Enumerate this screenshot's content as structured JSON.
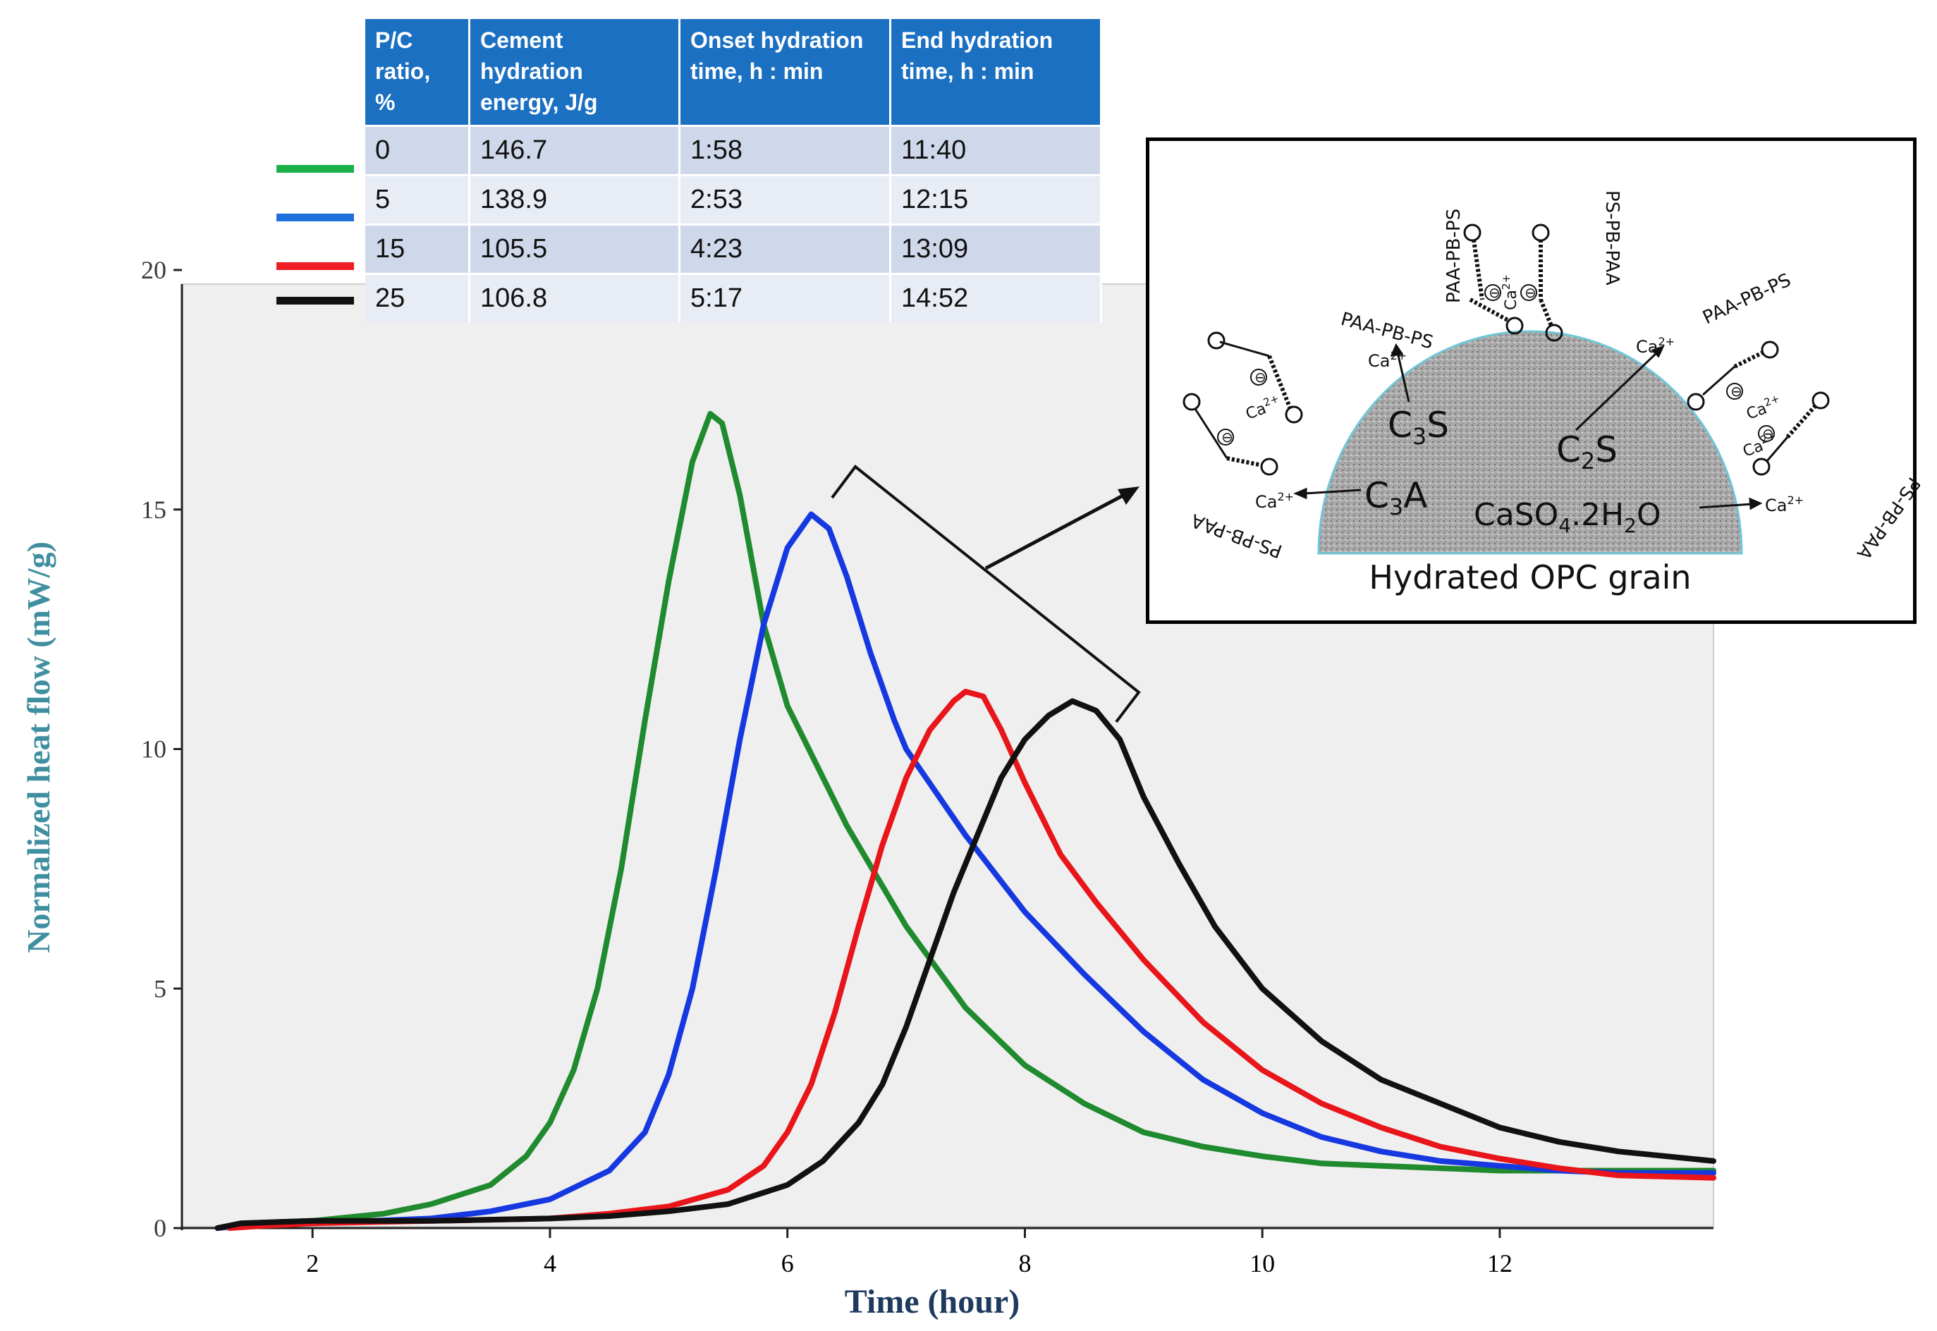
{
  "chart_data": {
    "type": "line",
    "title": "",
    "xlabel": "Time (hour)",
    "ylabel": "Normalized heat flow (mW/g)",
    "xlim": [
      0.9,
      13.8
    ],
    "ylim": [
      0,
      20
    ],
    "xticks": [
      2,
      4,
      6,
      8,
      10,
      12
    ],
    "yticks": [
      0,
      5,
      10,
      15,
      20
    ],
    "series": [
      {
        "name": "0",
        "color": "#1f8a2e",
        "points": [
          [
            1.2,
            0
          ],
          [
            1.4,
            0.1
          ],
          [
            2.0,
            0.15
          ],
          [
            2.6,
            0.3
          ],
          [
            3.0,
            0.5
          ],
          [
            3.5,
            0.9
          ],
          [
            3.8,
            1.5
          ],
          [
            4.0,
            2.2
          ],
          [
            4.2,
            3.3
          ],
          [
            4.4,
            5.0
          ],
          [
            4.6,
            7.5
          ],
          [
            4.8,
            10.6
          ],
          [
            5.0,
            13.5
          ],
          [
            5.2,
            16.0
          ],
          [
            5.35,
            17.0
          ],
          [
            5.45,
            16.8
          ],
          [
            5.6,
            15.3
          ],
          [
            5.8,
            12.6
          ],
          [
            6.0,
            10.9
          ],
          [
            6.2,
            9.9
          ],
          [
            6.5,
            8.4
          ],
          [
            7.0,
            6.3
          ],
          [
            7.5,
            4.6
          ],
          [
            8.0,
            3.4
          ],
          [
            8.5,
            2.6
          ],
          [
            9.0,
            2.0
          ],
          [
            9.5,
            1.7
          ],
          [
            10.0,
            1.5
          ],
          [
            10.5,
            1.35
          ],
          [
            11.0,
            1.3
          ],
          [
            12.0,
            1.2
          ],
          [
            13.0,
            1.2
          ],
          [
            13.8,
            1.2
          ]
        ]
      },
      {
        "name": "5",
        "color": "#1638e0",
        "points": [
          [
            1.2,
            0
          ],
          [
            1.4,
            0.05
          ],
          [
            2.0,
            0.1
          ],
          [
            3.0,
            0.2
          ],
          [
            3.5,
            0.35
          ],
          [
            4.0,
            0.6
          ],
          [
            4.5,
            1.2
          ],
          [
            4.8,
            2.0
          ],
          [
            5.0,
            3.2
          ],
          [
            5.2,
            5.0
          ],
          [
            5.4,
            7.5
          ],
          [
            5.6,
            10.2
          ],
          [
            5.8,
            12.6
          ],
          [
            6.0,
            14.2
          ],
          [
            6.2,
            14.9
          ],
          [
            6.35,
            14.6
          ],
          [
            6.5,
            13.6
          ],
          [
            6.7,
            12.0
          ],
          [
            6.9,
            10.6
          ],
          [
            7.0,
            10.0
          ],
          [
            7.5,
            8.2
          ],
          [
            8.0,
            6.6
          ],
          [
            8.5,
            5.3
          ],
          [
            9.0,
            4.1
          ],
          [
            9.5,
            3.1
          ],
          [
            10.0,
            2.4
          ],
          [
            10.5,
            1.9
          ],
          [
            11.0,
            1.6
          ],
          [
            11.5,
            1.4
          ],
          [
            12.0,
            1.3
          ],
          [
            12.5,
            1.2
          ],
          [
            13.0,
            1.15
          ],
          [
            13.8,
            1.15
          ]
        ]
      },
      {
        "name": "15",
        "color": "#e8151a",
        "points": [
          [
            1.3,
            0
          ],
          [
            1.6,
            0.05
          ],
          [
            2.0,
            0.1
          ],
          [
            3.0,
            0.15
          ],
          [
            4.0,
            0.2
          ],
          [
            4.5,
            0.3
          ],
          [
            5.0,
            0.45
          ],
          [
            5.5,
            0.8
          ],
          [
            5.8,
            1.3
          ],
          [
            6.0,
            2.0
          ],
          [
            6.2,
            3.0
          ],
          [
            6.4,
            4.5
          ],
          [
            6.6,
            6.3
          ],
          [
            6.8,
            8.0
          ],
          [
            7.0,
            9.4
          ],
          [
            7.2,
            10.4
          ],
          [
            7.4,
            11.0
          ],
          [
            7.5,
            11.2
          ],
          [
            7.65,
            11.1
          ],
          [
            7.8,
            10.4
          ],
          [
            8.0,
            9.3
          ],
          [
            8.3,
            7.8
          ],
          [
            8.6,
            6.8
          ],
          [
            9.0,
            5.6
          ],
          [
            9.5,
            4.3
          ],
          [
            10.0,
            3.3
          ],
          [
            10.5,
            2.6
          ],
          [
            11.0,
            2.1
          ],
          [
            11.5,
            1.7
          ],
          [
            12.0,
            1.45
          ],
          [
            12.5,
            1.25
          ],
          [
            13.0,
            1.1
          ],
          [
            13.8,
            1.05
          ]
        ]
      },
      {
        "name": "25",
        "color": "#111111",
        "points": [
          [
            1.2,
            0
          ],
          [
            1.4,
            0.1
          ],
          [
            2.0,
            0.15
          ],
          [
            3.0,
            0.15
          ],
          [
            4.0,
            0.2
          ],
          [
            4.5,
            0.25
          ],
          [
            5.0,
            0.35
          ],
          [
            5.5,
            0.5
          ],
          [
            6.0,
            0.9
          ],
          [
            6.3,
            1.4
          ],
          [
            6.6,
            2.2
          ],
          [
            6.8,
            3.0
          ],
          [
            7.0,
            4.2
          ],
          [
            7.2,
            5.6
          ],
          [
            7.4,
            7.0
          ],
          [
            7.6,
            8.2
          ],
          [
            7.8,
            9.4
          ],
          [
            8.0,
            10.2
          ],
          [
            8.2,
            10.7
          ],
          [
            8.4,
            11.0
          ],
          [
            8.6,
            10.8
          ],
          [
            8.8,
            10.2
          ],
          [
            9.0,
            9.0
          ],
          [
            9.3,
            7.6
          ],
          [
            9.6,
            6.3
          ],
          [
            10.0,
            5.0
          ],
          [
            10.5,
            3.9
          ],
          [
            11.0,
            3.1
          ],
          [
            11.5,
            2.6
          ],
          [
            12.0,
            2.1
          ],
          [
            12.5,
            1.8
          ],
          [
            13.0,
            1.6
          ],
          [
            13.8,
            1.4
          ]
        ]
      }
    ]
  },
  "table": {
    "headers": [
      "P/C ratio, %",
      "Cement hydration energy, J/g",
      "Onset hydration time,  h : min",
      "End hydration time,  h : min"
    ],
    "header_lines": [
      [
        "P/C",
        "ratio,",
        "%"
      ],
      [
        "Cement",
        "hydration",
        "energy, J/g"
      ],
      [
        "Onset hydration",
        "time,  h : min"
      ],
      [
        "End hydration",
        "time,  h : min"
      ]
    ],
    "rows": [
      [
        "0",
        "146.7",
        "1:58",
        "11:40"
      ],
      [
        "5",
        "138.9",
        "2:53",
        "12:15"
      ],
      [
        "15",
        "105.5",
        "4:23",
        "13:09"
      ],
      [
        "25",
        "106.8",
        "5:17",
        "14:52"
      ]
    ],
    "legend_colors": [
      "#1bb14a",
      "#1f6fdc",
      "#ee1c25",
      "#111111"
    ]
  },
  "inset": {
    "caption": "Hydrated OPC grain",
    "phase_c3s": "C3S",
    "phase_c2s": "C2S",
    "phase_c3a": "C3A",
    "phase_gypsum": "CaSO4.2H2O",
    "ion": "Ca2+",
    "polymer_paa_pb_ps": "PAA-PB-PS",
    "polymer_ps_pb_paa": "PS-PB-PAA"
  }
}
